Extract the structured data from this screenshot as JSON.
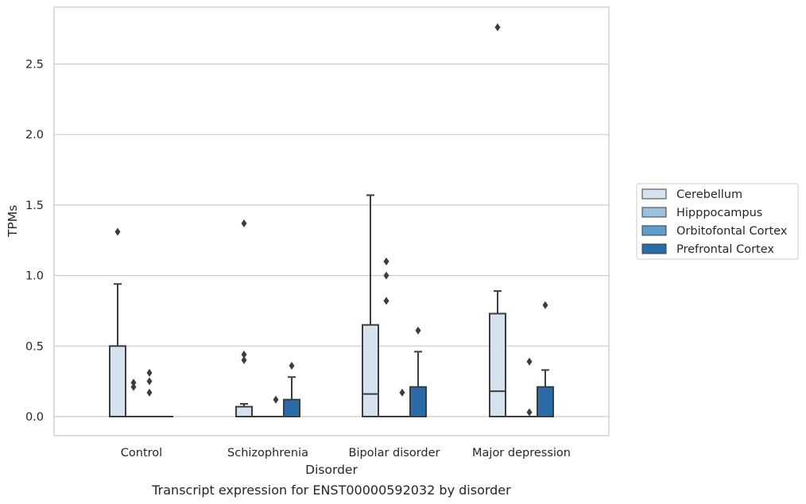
{
  "caption": "Transcript expression for ENST00000592032 by disorder",
  "chart_data": {
    "type": "box",
    "title": "",
    "xlabel": "Disorder",
    "ylabel": "TPMs",
    "ylim": [
      -0.13,
      2.9
    ],
    "yticks": [
      0.0,
      0.5,
      1.0,
      1.5,
      2.0,
      2.5
    ],
    "ytick_labels": [
      "0.0",
      "0.5",
      "1.0",
      "1.5",
      "2.0",
      "2.5"
    ],
    "grid": true,
    "legend_position": "right",
    "categories": [
      "Control",
      "Schizophrenia",
      "Bipolar disorder",
      "Major depression"
    ],
    "series": [
      {
        "name": "Cerebellum",
        "color": "#d5e3f1",
        "boxes": [
          {
            "q1": 0,
            "median": 0,
            "q3": 0.5,
            "whisker_low": 0,
            "whisker_high": 0.94,
            "outliers": [
              1.31
            ]
          },
          {
            "q1": 0,
            "median": 0,
            "q3": 0.07,
            "whisker_low": 0,
            "whisker_high": 0.09,
            "outliers": [
              0.4,
              0.44,
              1.37
            ]
          },
          {
            "q1": 0,
            "median": 0.16,
            "q3": 0.65,
            "whisker_low": 0,
            "whisker_high": 1.57,
            "outliers": []
          },
          {
            "q1": 0,
            "median": 0.18,
            "q3": 0.73,
            "whisker_low": 0,
            "whisker_high": 0.89,
            "outliers": [
              2.76
            ]
          }
        ]
      },
      {
        "name": "Hipppocampus",
        "color": "#9ac1dd",
        "boxes": [
          {
            "q1": 0,
            "median": 0,
            "q3": 0,
            "whisker_low": 0,
            "whisker_high": 0,
            "outliers": [
              0.21,
              0.24
            ]
          },
          {
            "q1": 0,
            "median": 0,
            "q3": 0,
            "whisker_low": 0,
            "whisker_high": 0,
            "outliers": []
          },
          {
            "q1": 0,
            "median": 0,
            "q3": 0,
            "whisker_low": 0,
            "whisker_high": 0,
            "outliers": [
              0.82,
              1.0,
              1.1
            ]
          },
          {
            "q1": 0,
            "median": 0,
            "q3": 0,
            "whisker_low": 0,
            "whisker_high": 0,
            "outliers": []
          }
        ]
      },
      {
        "name": "Orbitofontal Cortex",
        "color": "#5c9dc9",
        "boxes": [
          {
            "q1": 0,
            "median": 0,
            "q3": 0,
            "whisker_low": 0,
            "whisker_high": 0,
            "outliers": [
              0.17,
              0.25,
              0.31
            ]
          },
          {
            "q1": 0,
            "median": 0,
            "q3": 0,
            "whisker_low": 0,
            "whisker_high": 0,
            "outliers": [
              0.12
            ]
          },
          {
            "q1": 0,
            "median": 0,
            "q3": 0,
            "whisker_low": 0,
            "whisker_high": 0,
            "outliers": [
              0.17
            ]
          },
          {
            "q1": 0,
            "median": 0,
            "q3": 0,
            "whisker_low": 0,
            "whisker_high": 0,
            "outliers": [
              0.39,
              0.03
            ]
          }
        ]
      },
      {
        "name": "Prefrontal Cortex",
        "color": "#2b6ba8",
        "boxes": [
          {
            "q1": 0,
            "median": 0,
            "q3": 0,
            "whisker_low": 0,
            "whisker_high": 0,
            "outliers": []
          },
          {
            "q1": 0,
            "median": 0,
            "q3": 0.12,
            "whisker_low": 0,
            "whisker_high": 0.28,
            "outliers": [
              0.36
            ]
          },
          {
            "q1": 0,
            "median": 0,
            "q3": 0.21,
            "whisker_low": 0,
            "whisker_high": 0.46,
            "outliers": [
              0.61
            ]
          },
          {
            "q1": 0,
            "median": 0,
            "q3": 0.21,
            "whisker_low": 0,
            "whisker_high": 0.33,
            "outliers": [
              0.79
            ]
          }
        ]
      }
    ]
  }
}
